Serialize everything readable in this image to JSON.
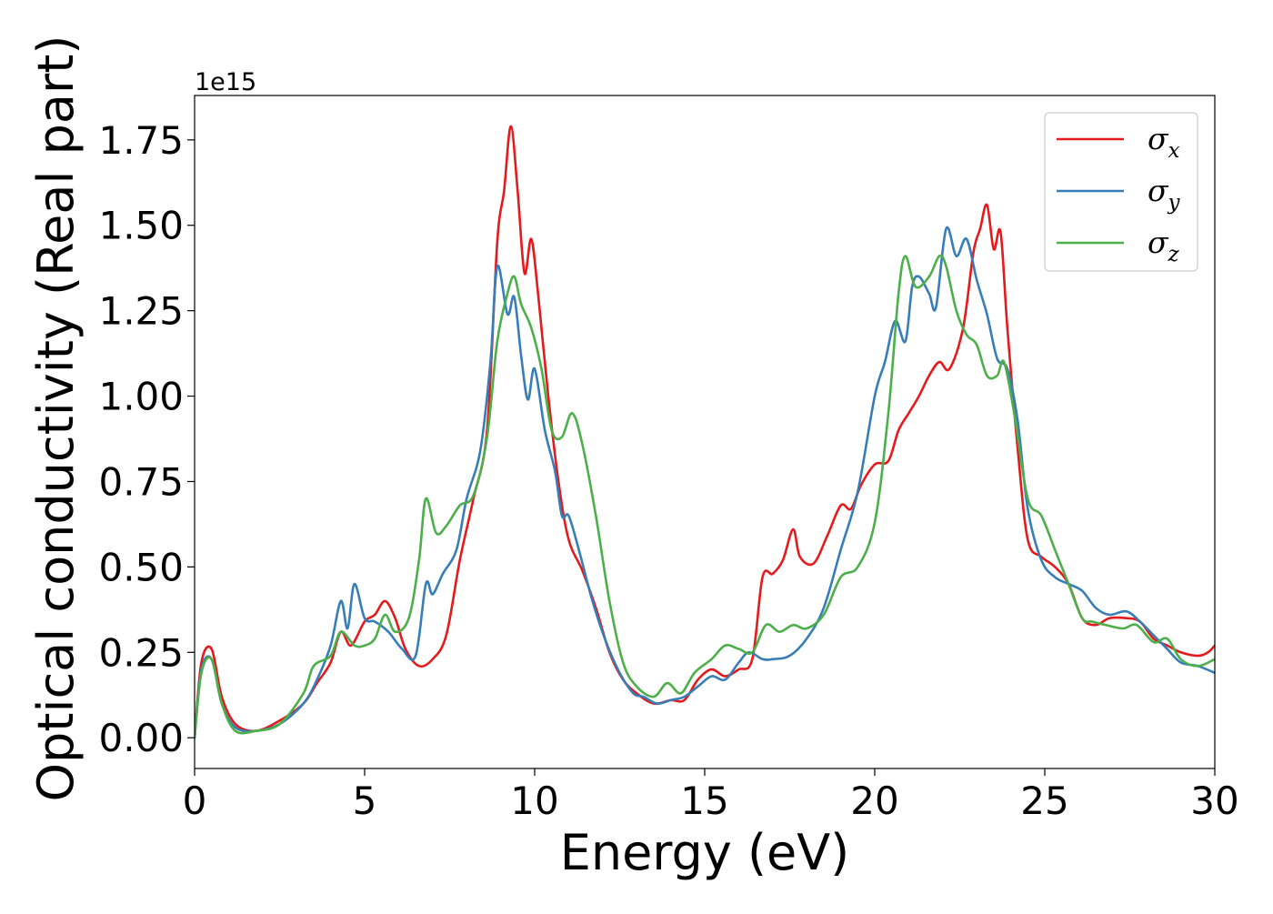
{
  "chart_data": {
    "type": "line",
    "xlabel": "Energy (eV)",
    "ylabel": "Optical conductivity (Real part)",
    "offset_label": "1e15",
    "xlim": [
      0,
      30
    ],
    "ylim": [
      -0.09,
      1.88
    ],
    "x_ticks": [
      0,
      5,
      10,
      15,
      20,
      25,
      30
    ],
    "x_tick_labels": [
      "0",
      "5",
      "10",
      "15",
      "20",
      "25",
      "30"
    ],
    "y_ticks": [
      0.0,
      0.25,
      0.5,
      0.75,
      1.0,
      1.25,
      1.5,
      1.75
    ],
    "y_tick_labels": [
      "0.00",
      "0.25",
      "0.50",
      "0.75",
      "1.00",
      "1.25",
      "1.50",
      "1.75"
    ],
    "grid": false,
    "legend_position": "top-right",
    "series": [
      {
        "name": "σx",
        "legend_symbol": "σ",
        "legend_subscript": "x",
        "color": "#e41a1c",
        "points": [
          [
            0,
            0.0
          ],
          [
            0.2,
            0.22
          ],
          [
            0.5,
            0.26
          ],
          [
            0.8,
            0.12
          ],
          [
            1.2,
            0.04
          ],
          [
            1.8,
            0.02
          ],
          [
            2.5,
            0.05
          ],
          [
            3.2,
            0.1
          ],
          [
            3.6,
            0.16
          ],
          [
            4.0,
            0.22
          ],
          [
            4.3,
            0.31
          ],
          [
            4.6,
            0.27
          ],
          [
            5.0,
            0.34
          ],
          [
            5.3,
            0.36
          ],
          [
            5.6,
            0.4
          ],
          [
            5.9,
            0.35
          ],
          [
            6.2,
            0.26
          ],
          [
            6.6,
            0.21
          ],
          [
            7.0,
            0.23
          ],
          [
            7.4,
            0.3
          ],
          [
            7.8,
            0.52
          ],
          [
            8.2,
            0.7
          ],
          [
            8.6,
            0.9
          ],
          [
            8.9,
            1.45
          ],
          [
            9.1,
            1.6
          ],
          [
            9.3,
            1.79
          ],
          [
            9.5,
            1.6
          ],
          [
            9.7,
            1.36
          ],
          [
            9.9,
            1.46
          ],
          [
            10.1,
            1.3
          ],
          [
            10.4,
            1.0
          ],
          [
            10.7,
            0.75
          ],
          [
            11.0,
            0.58
          ],
          [
            11.4,
            0.49
          ],
          [
            11.8,
            0.38
          ],
          [
            12.2,
            0.25
          ],
          [
            12.6,
            0.17
          ],
          [
            13.0,
            0.13
          ],
          [
            13.5,
            0.1
          ],
          [
            14.0,
            0.11
          ],
          [
            14.4,
            0.11
          ],
          [
            14.8,
            0.17
          ],
          [
            15.2,
            0.2
          ],
          [
            15.6,
            0.18
          ],
          [
            16.0,
            0.2
          ],
          [
            16.4,
            0.23
          ],
          [
            16.7,
            0.47
          ],
          [
            17.0,
            0.48
          ],
          [
            17.3,
            0.52
          ],
          [
            17.6,
            0.61
          ],
          [
            17.8,
            0.53
          ],
          [
            18.2,
            0.51
          ],
          [
            18.6,
            0.59
          ],
          [
            19.0,
            0.68
          ],
          [
            19.3,
            0.67
          ],
          [
            19.6,
            0.74
          ],
          [
            20.0,
            0.8
          ],
          [
            20.4,
            0.81
          ],
          [
            20.7,
            0.9
          ],
          [
            21.0,
            0.95
          ],
          [
            21.3,
            1.0
          ],
          [
            21.6,
            1.06
          ],
          [
            21.9,
            1.1
          ],
          [
            22.2,
            1.08
          ],
          [
            22.6,
            1.2
          ],
          [
            22.9,
            1.42
          ],
          [
            23.1,
            1.49
          ],
          [
            23.3,
            1.56
          ],
          [
            23.5,
            1.43
          ],
          [
            23.7,
            1.48
          ],
          [
            23.9,
            1.2
          ],
          [
            24.2,
            0.85
          ],
          [
            24.5,
            0.58
          ],
          [
            24.9,
            0.53
          ],
          [
            25.3,
            0.5
          ],
          [
            25.7,
            0.45
          ],
          [
            26.1,
            0.35
          ],
          [
            26.5,
            0.33
          ],
          [
            26.9,
            0.35
          ],
          [
            27.4,
            0.35
          ],
          [
            27.8,
            0.34
          ],
          [
            28.2,
            0.29
          ],
          [
            28.6,
            0.27
          ],
          [
            29.0,
            0.25
          ],
          [
            29.5,
            0.24
          ],
          [
            29.8,
            0.25
          ],
          [
            30.0,
            0.27
          ]
        ]
      },
      {
        "name": "σy",
        "legend_symbol": "σ",
        "legend_subscript": "y",
        "color": "#377eb8",
        "points": [
          [
            0,
            0.0
          ],
          [
            0.2,
            0.2
          ],
          [
            0.5,
            0.23
          ],
          [
            0.8,
            0.1
          ],
          [
            1.2,
            0.03
          ],
          [
            1.8,
            0.02
          ],
          [
            2.5,
            0.04
          ],
          [
            3.2,
            0.1
          ],
          [
            3.6,
            0.17
          ],
          [
            4.0,
            0.27
          ],
          [
            4.3,
            0.4
          ],
          [
            4.5,
            0.32
          ],
          [
            4.7,
            0.45
          ],
          [
            5.0,
            0.35
          ],
          [
            5.3,
            0.34
          ],
          [
            5.7,
            0.31
          ],
          [
            6.1,
            0.26
          ],
          [
            6.5,
            0.24
          ],
          [
            6.8,
            0.45
          ],
          [
            7.0,
            0.42
          ],
          [
            7.3,
            0.48
          ],
          [
            7.7,
            0.55
          ],
          [
            8.0,
            0.7
          ],
          [
            8.4,
            0.84
          ],
          [
            8.7,
            1.1
          ],
          [
            8.9,
            1.38
          ],
          [
            9.2,
            1.24
          ],
          [
            9.4,
            1.29
          ],
          [
            9.6,
            1.12
          ],
          [
            9.8,
            0.99
          ],
          [
            10.0,
            1.08
          ],
          [
            10.3,
            0.9
          ],
          [
            10.6,
            0.78
          ],
          [
            10.8,
            0.65
          ],
          [
            11.0,
            0.65
          ],
          [
            11.3,
            0.55
          ],
          [
            11.7,
            0.4
          ],
          [
            12.1,
            0.28
          ],
          [
            12.5,
            0.19
          ],
          [
            12.9,
            0.13
          ],
          [
            13.2,
            0.12
          ],
          [
            13.6,
            0.1
          ],
          [
            14.0,
            0.11
          ],
          [
            14.4,
            0.12
          ],
          [
            14.8,
            0.15
          ],
          [
            15.2,
            0.18
          ],
          [
            15.6,
            0.17
          ],
          [
            16.0,
            0.22
          ],
          [
            16.3,
            0.25
          ],
          [
            16.7,
            0.23
          ],
          [
            17.0,
            0.23
          ],
          [
            17.5,
            0.24
          ],
          [
            18.0,
            0.29
          ],
          [
            18.5,
            0.38
          ],
          [
            19.0,
            0.55
          ],
          [
            19.5,
            0.72
          ],
          [
            20.0,
            1.0
          ],
          [
            20.3,
            1.1
          ],
          [
            20.6,
            1.22
          ],
          [
            20.9,
            1.16
          ],
          [
            21.1,
            1.32
          ],
          [
            21.3,
            1.35
          ],
          [
            21.6,
            1.3
          ],
          [
            21.8,
            1.26
          ],
          [
            22.1,
            1.49
          ],
          [
            22.4,
            1.41
          ],
          [
            22.7,
            1.46
          ],
          [
            23.0,
            1.34
          ],
          [
            23.3,
            1.24
          ],
          [
            23.6,
            1.11
          ],
          [
            23.9,
            1.08
          ],
          [
            24.2,
            0.93
          ],
          [
            24.5,
            0.67
          ],
          [
            24.9,
            0.52
          ],
          [
            25.3,
            0.47
          ],
          [
            25.7,
            0.45
          ],
          [
            26.1,
            0.43
          ],
          [
            26.5,
            0.38
          ],
          [
            26.9,
            0.36
          ],
          [
            27.4,
            0.37
          ],
          [
            27.8,
            0.34
          ],
          [
            28.2,
            0.3
          ],
          [
            28.6,
            0.26
          ],
          [
            29.0,
            0.22
          ],
          [
            29.5,
            0.21
          ],
          [
            30.0,
            0.19
          ]
        ]
      },
      {
        "name": "σz",
        "legend_symbol": "σ",
        "legend_subscript": "z",
        "color": "#4daf4a",
        "points": [
          [
            0,
            0.0
          ],
          [
            0.2,
            0.19
          ],
          [
            0.5,
            0.23
          ],
          [
            0.8,
            0.1
          ],
          [
            1.2,
            0.02
          ],
          [
            1.8,
            0.02
          ],
          [
            2.5,
            0.04
          ],
          [
            3.2,
            0.13
          ],
          [
            3.5,
            0.21
          ],
          [
            4.0,
            0.24
          ],
          [
            4.3,
            0.31
          ],
          [
            4.7,
            0.27
          ],
          [
            5.0,
            0.27
          ],
          [
            5.3,
            0.29
          ],
          [
            5.6,
            0.36
          ],
          [
            5.9,
            0.31
          ],
          [
            6.3,
            0.35
          ],
          [
            6.6,
            0.52
          ],
          [
            6.8,
            0.7
          ],
          [
            7.1,
            0.6
          ],
          [
            7.4,
            0.62
          ],
          [
            7.8,
            0.68
          ],
          [
            8.2,
            0.71
          ],
          [
            8.6,
            0.88
          ],
          [
            8.9,
            1.16
          ],
          [
            9.2,
            1.3
          ],
          [
            9.4,
            1.35
          ],
          [
            9.6,
            1.27
          ],
          [
            9.9,
            1.2
          ],
          [
            10.2,
            1.08
          ],
          [
            10.5,
            0.9
          ],
          [
            10.8,
            0.88
          ],
          [
            11.1,
            0.95
          ],
          [
            11.4,
            0.86
          ],
          [
            11.8,
            0.65
          ],
          [
            12.2,
            0.4
          ],
          [
            12.6,
            0.22
          ],
          [
            13.0,
            0.15
          ],
          [
            13.5,
            0.12
          ],
          [
            13.9,
            0.16
          ],
          [
            14.3,
            0.13
          ],
          [
            14.7,
            0.19
          ],
          [
            15.2,
            0.23
          ],
          [
            15.6,
            0.27
          ],
          [
            16.0,
            0.26
          ],
          [
            16.4,
            0.25
          ],
          [
            16.8,
            0.33
          ],
          [
            17.2,
            0.31
          ],
          [
            17.6,
            0.33
          ],
          [
            18.0,
            0.32
          ],
          [
            18.5,
            0.36
          ],
          [
            19.0,
            0.47
          ],
          [
            19.5,
            0.5
          ],
          [
            20.0,
            0.63
          ],
          [
            20.4,
            0.95
          ],
          [
            20.7,
            1.3
          ],
          [
            20.9,
            1.41
          ],
          [
            21.2,
            1.32
          ],
          [
            21.6,
            1.35
          ],
          [
            21.9,
            1.41
          ],
          [
            22.1,
            1.38
          ],
          [
            22.4,
            1.25
          ],
          [
            22.7,
            1.18
          ],
          [
            23.0,
            1.15
          ],
          [
            23.3,
            1.06
          ],
          [
            23.6,
            1.06
          ],
          [
            23.8,
            1.1
          ],
          [
            24.1,
            0.95
          ],
          [
            24.5,
            0.7
          ],
          [
            24.9,
            0.65
          ],
          [
            25.3,
            0.55
          ],
          [
            25.7,
            0.45
          ],
          [
            26.1,
            0.35
          ],
          [
            26.4,
            0.34
          ],
          [
            26.8,
            0.33
          ],
          [
            27.3,
            0.32
          ],
          [
            27.7,
            0.33
          ],
          [
            28.2,
            0.28
          ],
          [
            28.6,
            0.29
          ],
          [
            29.0,
            0.23
          ],
          [
            29.5,
            0.21
          ],
          [
            30.0,
            0.23
          ]
        ]
      }
    ]
  }
}
